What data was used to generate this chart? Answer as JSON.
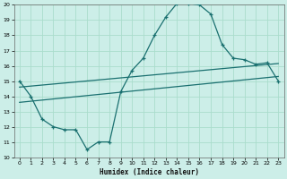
{
  "title": "",
  "xlabel": "Humidex (Indice chaleur)",
  "ylabel": "",
  "bg_color": "#cceee8",
  "grid_color": "#aaddcc",
  "line_color": "#1a7070",
  "xlim": [
    -0.5,
    23.5
  ],
  "ylim": [
    10,
    20
  ],
  "xticks": [
    0,
    1,
    2,
    3,
    4,
    5,
    6,
    7,
    8,
    9,
    10,
    11,
    12,
    13,
    14,
    15,
    16,
    17,
    18,
    19,
    20,
    21,
    22,
    23
  ],
  "yticks": [
    10,
    11,
    12,
    13,
    14,
    15,
    16,
    17,
    18,
    19,
    20
  ],
  "main_x": [
    0,
    1,
    2,
    3,
    4,
    5,
    6,
    7,
    8,
    9,
    10,
    11,
    12,
    13,
    14,
    15,
    16,
    17,
    18,
    19,
    20,
    21,
    22,
    23
  ],
  "main_y": [
    15,
    14,
    12.5,
    12,
    11.8,
    11.8,
    10.5,
    11,
    11,
    14.3,
    15.7,
    16.5,
    18,
    19.2,
    20.1,
    20.1,
    20,
    19.4,
    17.4,
    16.5,
    16.4,
    16.1,
    16.2,
    15
  ],
  "line2_x": [
    0,
    23
  ],
  "line2_y": [
    14.6,
    16.15
  ],
  "line3_x": [
    0,
    23
  ],
  "line3_y": [
    13.6,
    15.3
  ]
}
